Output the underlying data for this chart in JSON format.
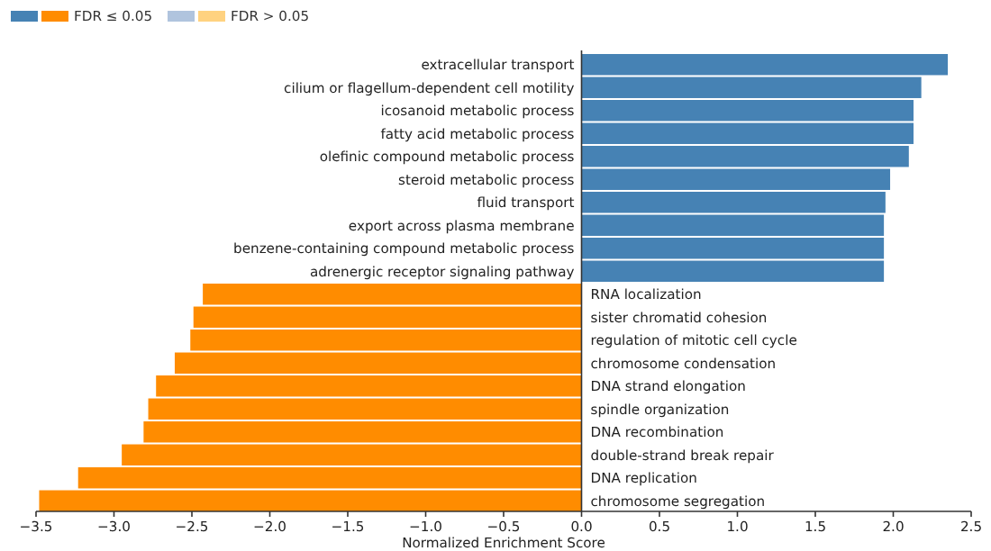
{
  "chart_data": {
    "type": "bar",
    "orientation": "horizontal",
    "xlabel": "Normalized Enrichment Score",
    "categories": [
      "extracellular transport",
      "cilium or flagellum-dependent cell motility",
      "icosanoid metabolic process",
      "fatty acid metabolic process",
      "olefinic compound metabolic process",
      "steroid metabolic process",
      "fluid transport",
      "export across plasma membrane",
      "benzene-containing compound metabolic process",
      "adrenergic receptor signaling pathway",
      "RNA localization",
      "sister chromatid cohesion",
      "regulation of mitotic cell cycle",
      "chromosome condensation",
      "DNA strand elongation",
      "spindle organization",
      "DNA recombination",
      "double-strand break repair",
      "DNA replication",
      "chromosome segregation"
    ],
    "series": [
      {
        "name": "FDR ≤ 0.05",
        "values": [
          2.35,
          2.18,
          2.13,
          2.13,
          2.1,
          1.98,
          1.95,
          1.94,
          1.94,
          1.94,
          -2.43,
          -2.49,
          -2.51,
          -2.61,
          -2.73,
          -2.78,
          -2.81,
          -2.95,
          -3.23,
          -3.48
        ],
        "colors": [
          "#4682b4",
          "#4682b4",
          "#4682b4",
          "#4682b4",
          "#4682b4",
          "#4682b4",
          "#4682b4",
          "#4682b4",
          "#4682b4",
          "#4682b4",
          "#ff8c00",
          "#ff8c00",
          "#ff8c00",
          "#ff8c00",
          "#ff8c00",
          "#ff8c00",
          "#ff8c00",
          "#ff8c00",
          "#ff8c00",
          "#ff8c00"
        ]
      },
      {
        "name": "FDR > 0.05",
        "values": [
          null,
          null,
          null,
          null,
          null,
          null,
          null,
          null,
          null,
          null,
          null,
          null,
          null,
          null,
          null,
          null,
          null,
          null,
          null,
          null
        ],
        "colors": [
          "#b0c4de",
          "#b0c4de",
          "#b0c4de",
          "#b0c4de",
          "#b0c4de",
          "#b0c4de",
          "#b0c4de",
          "#b0c4de",
          "#b0c4de",
          "#b0c4de",
          "#ffd280",
          "#ffd280",
          "#ffd280",
          "#ffd280",
          "#ffd280",
          "#ffd280",
          "#ffd280",
          "#ffd280",
          "#ffd280",
          "#ffd280"
        ]
      }
    ],
    "xlim": [
      -3.5,
      2.5
    ],
    "xticks": [
      {
        "value": -3.5,
        "label": "−3.5"
      },
      {
        "value": -3,
        "label": "−3.0"
      },
      {
        "value": -2.5,
        "label": "−2.5"
      },
      {
        "value": -2,
        "label": "−2.0"
      },
      {
        "value": -1.5,
        "label": "−1.5"
      },
      {
        "value": -1,
        "label": "−1.0"
      },
      {
        "value": -0.5,
        "label": "−0.5"
      },
      {
        "value": 0,
        "label": "0.0"
      },
      {
        "value": 0.5,
        "label": "0.5"
      },
      {
        "value": 1,
        "label": "1.0"
      },
      {
        "value": 1.5,
        "label": "1.5"
      },
      {
        "value": 2,
        "label": "2.0"
      },
      {
        "value": 2.5,
        "label": "2.5"
      }
    ],
    "legend": "top left",
    "grid": false
  }
}
